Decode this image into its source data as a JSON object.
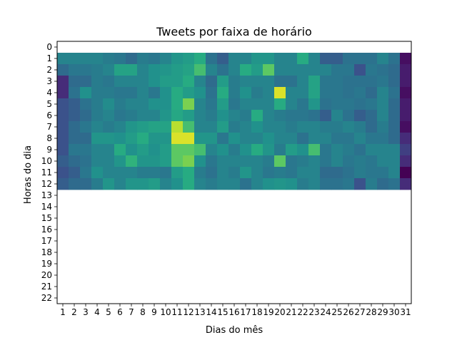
{
  "chart_data": {
    "type": "heatmap",
    "title": "Tweets por faixa de horário",
    "xlabel": "Dias do mês",
    "ylabel": "Horas do dia",
    "x_categories": [
      "1",
      "2",
      "3",
      "4",
      "5",
      "6",
      "7",
      "8",
      "9",
      "10",
      "11",
      "12",
      "13",
      "14",
      "15",
      "16",
      "17",
      "18",
      "19",
      "20",
      "21",
      "22",
      "23",
      "24",
      "25",
      "26",
      "27",
      "28",
      "29",
      "30",
      "31"
    ],
    "y_categories": [
      "0",
      "1",
      "2",
      "3",
      "4",
      "5",
      "6",
      "7",
      "8",
      "9",
      "10",
      "11",
      "12",
      "13",
      "14",
      "15",
      "16",
      "17",
      "18",
      "19",
      "20",
      "21",
      "22"
    ],
    "value_range": [
      0,
      1
    ],
    "colormap": "viridis",
    "data_rows": [
      1,
      2,
      3,
      4,
      5,
      6,
      7,
      8,
      9,
      10,
      11,
      12
    ],
    "values": [
      [
        0.45,
        0.45,
        0.45,
        0.45,
        0.42,
        0.4,
        0.35,
        0.42,
        0.4,
        0.45,
        0.52,
        0.55,
        0.62,
        0.38,
        0.3,
        0.45,
        0.45,
        0.52,
        0.52,
        0.45,
        0.45,
        0.62,
        0.45,
        0.3,
        0.3,
        0.38,
        0.38,
        0.38,
        0.45,
        0.38,
        0.05
      ],
      [
        0.35,
        0.4,
        0.4,
        0.42,
        0.45,
        0.58,
        0.58,
        0.45,
        0.5,
        0.52,
        0.55,
        0.58,
        0.7,
        0.45,
        0.38,
        0.45,
        0.62,
        0.55,
        0.75,
        0.45,
        0.45,
        0.45,
        0.45,
        0.45,
        0.4,
        0.4,
        0.25,
        0.4,
        0.38,
        0.35,
        0.1
      ],
      [
        0.15,
        0.35,
        0.35,
        0.42,
        0.4,
        0.45,
        0.45,
        0.45,
        0.5,
        0.55,
        0.55,
        0.62,
        0.45,
        0.35,
        0.55,
        0.42,
        0.45,
        0.45,
        0.45,
        0.38,
        0.38,
        0.45,
        0.58,
        0.4,
        0.4,
        0.38,
        0.38,
        0.38,
        0.4,
        0.35,
        0.1
      ],
      [
        0.15,
        0.38,
        0.5,
        0.42,
        0.42,
        0.4,
        0.4,
        0.45,
        0.4,
        0.5,
        0.62,
        0.55,
        0.5,
        0.38,
        0.62,
        0.42,
        0.5,
        0.42,
        0.45,
        0.95,
        0.45,
        0.45,
        0.58,
        0.4,
        0.4,
        0.38,
        0.4,
        0.35,
        0.45,
        0.38,
        0.05
      ],
      [
        0.25,
        0.3,
        0.38,
        0.42,
        0.48,
        0.42,
        0.45,
        0.45,
        0.5,
        0.5,
        0.62,
        0.8,
        0.45,
        0.4,
        0.55,
        0.4,
        0.45,
        0.45,
        0.45,
        0.62,
        0.45,
        0.4,
        0.52,
        0.38,
        0.4,
        0.4,
        0.38,
        0.4,
        0.45,
        0.35,
        0.1
      ],
      [
        0.25,
        0.3,
        0.35,
        0.42,
        0.45,
        0.4,
        0.42,
        0.45,
        0.45,
        0.52,
        0.6,
        0.55,
        0.45,
        0.42,
        0.5,
        0.45,
        0.42,
        0.62,
        0.45,
        0.42,
        0.4,
        0.4,
        0.38,
        0.3,
        0.45,
        0.38,
        0.3,
        0.35,
        0.45,
        0.35,
        0.1
      ],
      [
        0.25,
        0.35,
        0.4,
        0.45,
        0.42,
        0.45,
        0.52,
        0.55,
        0.58,
        0.58,
        0.9,
        0.7,
        0.45,
        0.45,
        0.55,
        0.42,
        0.45,
        0.5,
        0.45,
        0.45,
        0.42,
        0.45,
        0.45,
        0.42,
        0.42,
        0.45,
        0.42,
        0.35,
        0.42,
        0.35,
        0.05
      ],
      [
        0.25,
        0.35,
        0.35,
        0.52,
        0.52,
        0.5,
        0.55,
        0.62,
        0.52,
        0.52,
        0.95,
        0.95,
        0.52,
        0.52,
        0.4,
        0.5,
        0.45,
        0.45,
        0.5,
        0.45,
        0.45,
        0.38,
        0.45,
        0.45,
        0.4,
        0.4,
        0.45,
        0.4,
        0.4,
        0.35,
        0.15
      ],
      [
        0.25,
        0.4,
        0.4,
        0.45,
        0.45,
        0.62,
        0.5,
        0.55,
        0.5,
        0.55,
        0.75,
        0.75,
        0.7,
        0.45,
        0.5,
        0.42,
        0.5,
        0.62,
        0.52,
        0.42,
        0.55,
        0.5,
        0.7,
        0.4,
        0.45,
        0.42,
        0.38,
        0.45,
        0.45,
        0.45,
        0.2
      ],
      [
        0.3,
        0.35,
        0.38,
        0.45,
        0.45,
        0.52,
        0.65,
        0.52,
        0.52,
        0.55,
        0.75,
        0.8,
        0.5,
        0.4,
        0.45,
        0.45,
        0.45,
        0.45,
        0.42,
        0.75,
        0.4,
        0.42,
        0.45,
        0.4,
        0.45,
        0.4,
        0.42,
        0.4,
        0.45,
        0.45,
        0.15
      ],
      [
        0.25,
        0.3,
        0.4,
        0.5,
        0.45,
        0.45,
        0.45,
        0.42,
        0.42,
        0.4,
        0.55,
        0.62,
        0.42,
        0.38,
        0.45,
        0.42,
        0.52,
        0.45,
        0.4,
        0.42,
        0.4,
        0.45,
        0.45,
        0.35,
        0.35,
        0.38,
        0.42,
        0.4,
        0.4,
        0.45,
        0.0
      ],
      [
        0.3,
        0.35,
        0.35,
        0.42,
        0.52,
        0.45,
        0.52,
        0.52,
        0.55,
        0.45,
        0.5,
        0.62,
        0.45,
        0.42,
        0.45,
        0.45,
        0.38,
        0.45,
        0.5,
        0.52,
        0.5,
        0.42,
        0.45,
        0.38,
        0.38,
        0.4,
        0.25,
        0.42,
        0.35,
        0.38,
        0.15
      ]
    ]
  }
}
